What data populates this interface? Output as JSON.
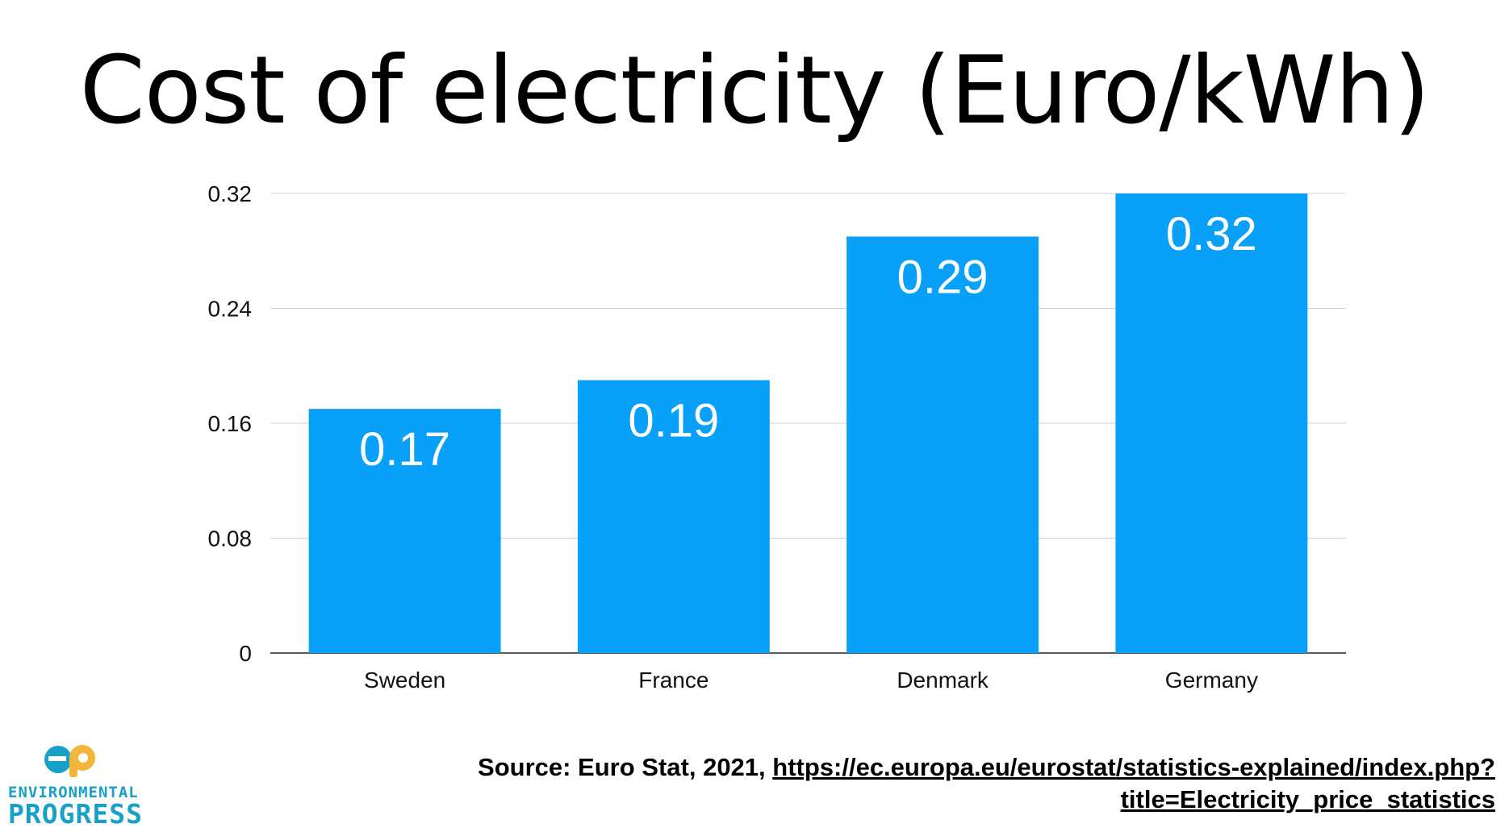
{
  "chart_data": {
    "type": "bar",
    "title": "Cost of electricity (Euro/kWh)",
    "categories": [
      "Sweden",
      "France",
      "Denmark",
      "Germany"
    ],
    "values": [
      0.17,
      0.19,
      0.29,
      0.32
    ],
    "data_labels": [
      "0.17",
      "0.19",
      "0.29",
      "0.32"
    ],
    "y_ticks": [
      0,
      0.08,
      0.16,
      0.24,
      0.32
    ],
    "y_tick_labels": [
      "0",
      "0.08",
      "0.16",
      "0.24",
      "0.32"
    ],
    "ylim": [
      0,
      0.32
    ],
    "xlabel": "",
    "ylabel": "",
    "grid": true,
    "legend": "none",
    "bar_color": "#08a0f8"
  },
  "source": {
    "prefix": "Source: Euro Stat, 2021, ",
    "link_line1": "https://ec.europa.eu/eurostat/statistics-explained/index.php?",
    "link_line2": "title=Electricity_price_statistics"
  },
  "logo": {
    "line1": "ENVIRONMENTAL",
    "line2": "PROGRESS",
    "icon": "environmental-progress-ep-logo",
    "colors": [
      "#19a0c8",
      "#f2b63a"
    ]
  }
}
